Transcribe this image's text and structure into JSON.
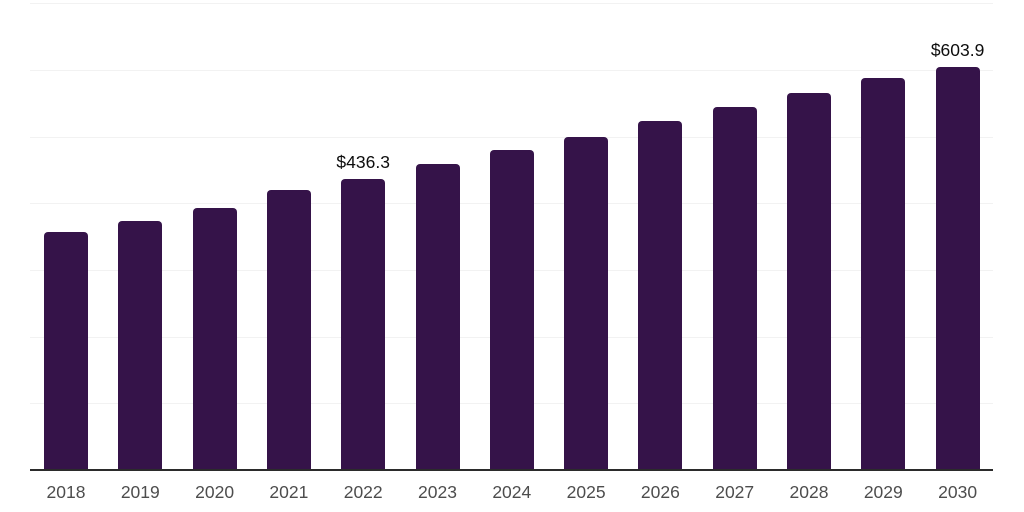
{
  "chart": {
    "background_color": "#ffffff",
    "bar_color": "#351349",
    "grid_color": "#f2f2f2",
    "axis_color": "#2b2b2b",
    "tick_label_color": "#4d4d4d",
    "value_label_color": "#0d0d0d"
  },
  "chart_data": {
    "type": "bar",
    "title": "",
    "categories": [
      "2018",
      "2019",
      "2020",
      "2021",
      "2022",
      "2023",
      "2024",
      "2025",
      "2026",
      "2027",
      "2028",
      "2029",
      "2030"
    ],
    "values": [
      357.0,
      373.0,
      393.0,
      419.5,
      436.3,
      459.0,
      479.5,
      500.0,
      523.5,
      544.0,
      565.5,
      587.5,
      603.9
    ],
    "value_labels": [
      "",
      "",
      "",
      "",
      "$436.3",
      "",
      "",
      "",
      "",
      "",
      "",
      "",
      "$603.9"
    ],
    "xlabel": "",
    "ylabel": "",
    "ylim": [
      0,
      700
    ],
    "gridline_values": [
      100,
      200,
      300,
      400,
      500,
      600,
      700
    ],
    "grid": "horizontal",
    "legend": "none"
  }
}
